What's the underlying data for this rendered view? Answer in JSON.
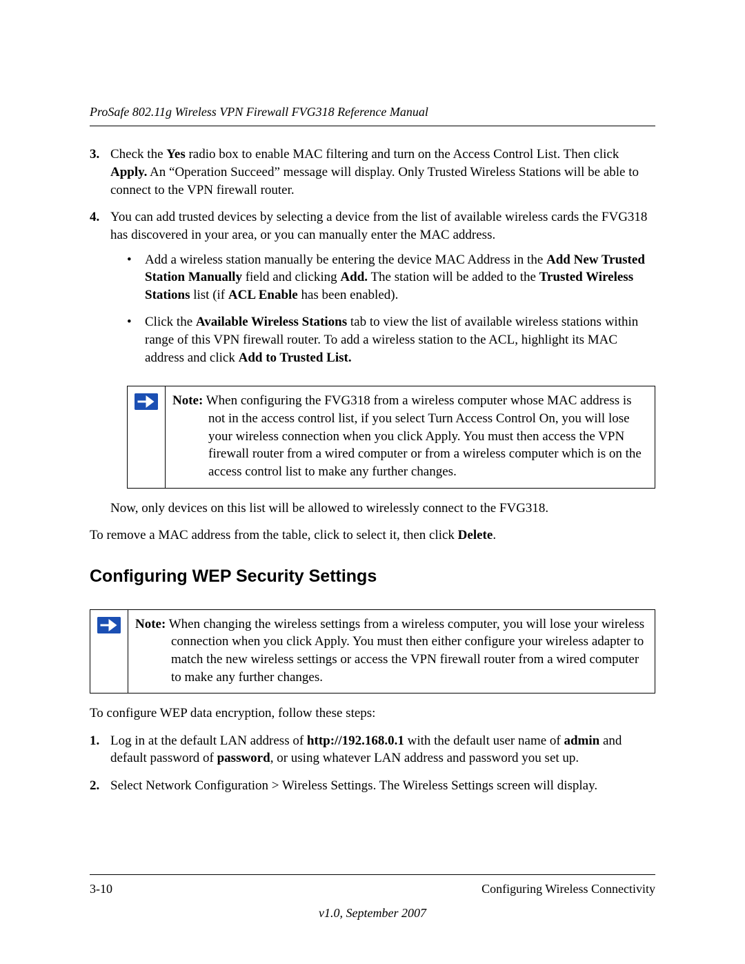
{
  "header": {
    "running_title": "ProSafe 802.11g Wireless VPN Firewall FVG318 Reference Manual"
  },
  "steps_a": [
    {
      "num": "3.",
      "runs": [
        {
          "t": "Check the "
        },
        {
          "t": "Yes",
          "b": true
        },
        {
          "t": " radio box to enable MAC filtering and turn on the Access Control List. Then click "
        },
        {
          "t": "Apply.",
          "b": true
        },
        {
          "t": " An “Operation Succeed” message will display. Only Trusted Wireless Stations will be able to connect to the VPN firewall router."
        }
      ]
    },
    {
      "num": "4.",
      "runs": [
        {
          "t": "You can add trusted devices by selecting a device from the list of available wireless cards the FVG318 has discovered in your area, or you can manually enter the MAC address."
        }
      ],
      "bullets": [
        [
          {
            "t": "Add a wireless station manually be entering the device MAC Address in the "
          },
          {
            "t": "Add New Trusted Station Manually",
            "b": true
          },
          {
            "t": " field and clicking "
          },
          {
            "t": "Add.",
            "b": true
          },
          {
            "t": " The station will be added to the "
          },
          {
            "t": "Trusted Wireless Stations",
            "b": true
          },
          {
            "t": " list (if "
          },
          {
            "t": "ACL Enable",
            "b": true
          },
          {
            "t": " has been enabled)."
          }
        ],
        [
          {
            "t": "Click the "
          },
          {
            "t": "Available Wireless Stations",
            "b": true
          },
          {
            "t": " tab to view the list of available wireless stations within range of this VPN firewall router. To add a wireless station to the ACL, highlight its MAC address and click "
          },
          {
            "t": "Add to Trusted List.",
            "b": true
          }
        ]
      ]
    }
  ],
  "note1": {
    "label": "Note:",
    "body": " When configuring the FVG318 from a wireless computer whose MAC address is not in the access control list, if you select Turn Access Control On, you will lose your wireless connection when you click Apply. You must then access the VPN firewall router from a wired computer or from a wireless computer which is on the access control list to make any further changes."
  },
  "after_note1_indented": "Now, only devices on this list will be allowed to wirelessly connect to the FVG318.",
  "after_note1_runs": [
    {
      "t": "To remove a MAC address from the table, click to select it, then click "
    },
    {
      "t": "Delete",
      "b": true
    },
    {
      "t": "."
    }
  ],
  "section_heading": "Configuring WEP Security Settings",
  "note2": {
    "label": "Note:",
    "body": " When changing the wireless settings from a wireless computer, you will lose your wireless connection when you click Apply. You must then either configure your wireless adapter to match the new wireless settings or access the VPN firewall router from a wired computer to make any further changes."
  },
  "after_note2": "To configure WEP data encryption, follow these steps:",
  "steps_b": [
    {
      "num": "1.",
      "runs": [
        {
          "t": "Log in at the default LAN address of "
        },
        {
          "t": "http://192.168.0.1",
          "b": true
        },
        {
          "t": " with the default user name of "
        },
        {
          "t": "admin",
          "b": true
        },
        {
          "t": " and default password of "
        },
        {
          "t": "password",
          "b": true
        },
        {
          "t": ", or using whatever LAN address and password you set up."
        }
      ]
    },
    {
      "num": "2.",
      "runs": [
        {
          "t": "Select Network Configuration > Wireless Settings. The Wireless Settings screen will display."
        }
      ]
    }
  ],
  "footer": {
    "page_num": "3-10",
    "chapter": "Configuring Wireless Connectivity",
    "version": "v1.0, September 2007"
  },
  "colors": {
    "icon_bg": "#1b4fb3",
    "icon_fg": "#ffffff"
  }
}
